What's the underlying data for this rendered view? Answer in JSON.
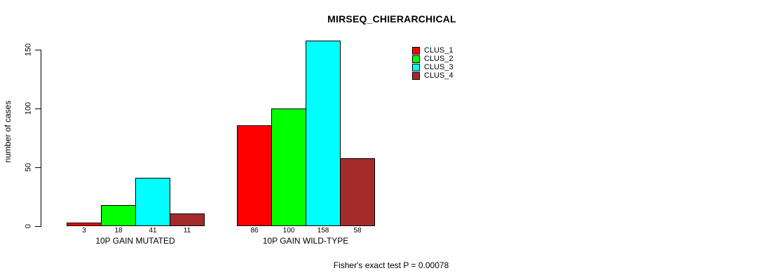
{
  "chart_data": {
    "type": "bar",
    "title": "MIRSEQ_CHIERARCHICAL",
    "ylabel": "number of cases",
    "xlabel": "",
    "categories": [
      "10P GAIN MUTATED",
      "10P GAIN WILD-TYPE"
    ],
    "series": [
      {
        "name": "CLUS_1",
        "color": "#FF0000",
        "values": [
          3,
          86
        ]
      },
      {
        "name": "CLUS_2",
        "color": "#00FF00",
        "values": [
          18,
          100
        ]
      },
      {
        "name": "CLUS_3",
        "color": "#00FFFF",
        "values": [
          41,
          158
        ]
      },
      {
        "name": "CLUS_4",
        "color": "#A52A2A",
        "values": [
          11,
          58
        ]
      }
    ],
    "yticks": [
      0,
      50,
      100,
      150
    ],
    "ylim": [
      0,
      158
    ],
    "grid": false,
    "bar_borders": "#000000",
    "value_labels_shown": true,
    "legend_position": "top-right",
    "legend_entries": [
      "CLUS_1",
      "CLUS_2",
      "CLUS_3",
      "CLUS_4"
    ],
    "annotation": "Fisher's exact test P = 0.00078",
    "background": "#FFFFFF"
  }
}
